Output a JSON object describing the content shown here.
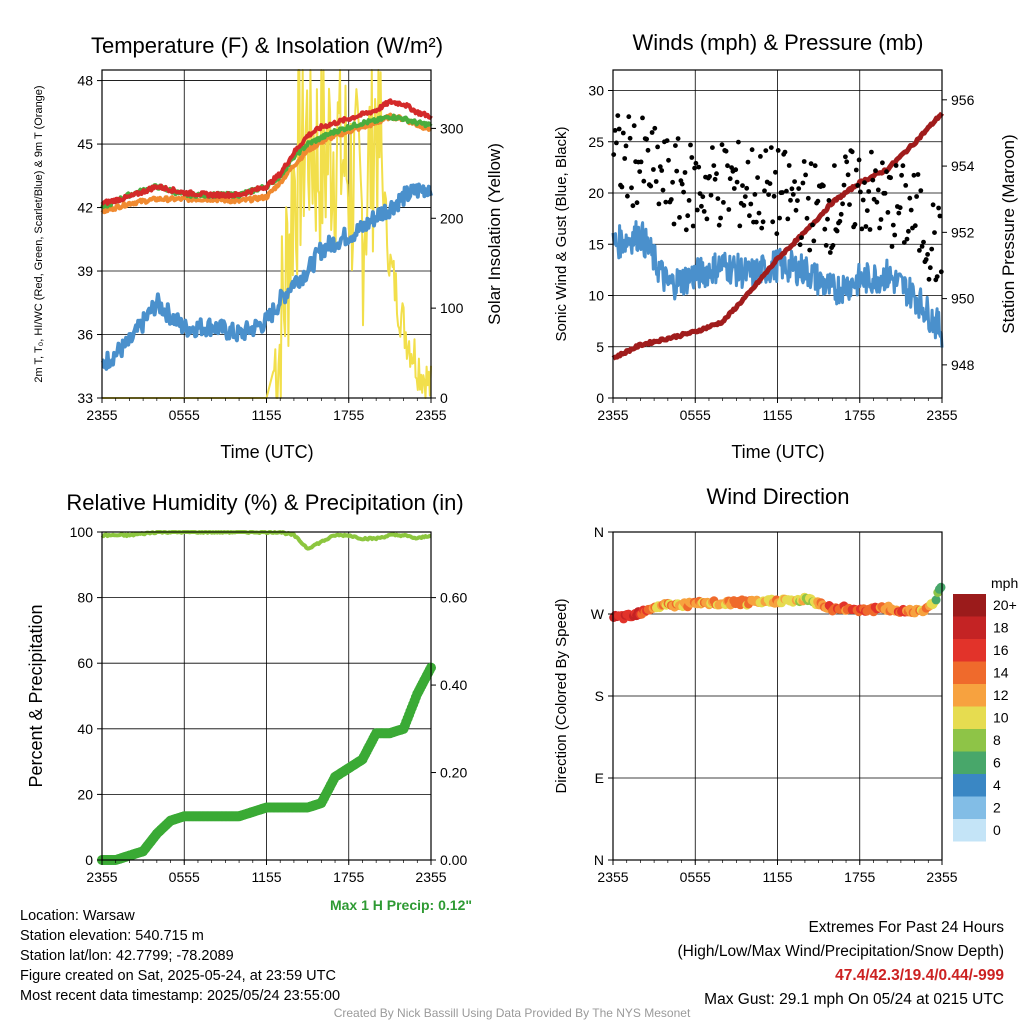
{
  "colors": {
    "red": "#d42a2a",
    "green": "#4aad3d",
    "orange": "#f08a30",
    "blue": "#4a90cc",
    "yellow": "#f2df4b",
    "maroon": "#a01c1c",
    "rh": "#8cc63f",
    "precip": "#3aaa35",
    "dots": "#000000"
  },
  "x_ticks": [
    "2355",
    "0555",
    "1155",
    "1755",
    "2355"
  ],
  "panels": {
    "temp": {
      "title": "Temperature (F) & Insolation (W/m²)",
      "xlabel": "Time (UTC)",
      "ylabel_left": "2m T, T₀, HI/WC (Red, Green, Scarlet/Blue) & 9m T (Orange)",
      "ylabel_right": "Solar Insolation (Yellow)",
      "yticks_left": [
        "48",
        "45",
        "42",
        "39",
        "36",
        "33"
      ],
      "yticks_right": [
        "300",
        "200",
        "100",
        "0"
      ]
    },
    "wind": {
      "title": "Winds (mph) & Pressure (mb)",
      "xlabel": "Time (UTC)",
      "ylabel_left": "Sonic Wind & Gust (Blue, Black)",
      "ylabel_right": "Station Pressure (Maroon)",
      "yticks_left": [
        "30",
        "25",
        "20",
        "15",
        "10",
        "5",
        "0"
      ],
      "yticks_right": [
        "956",
        "954",
        "952",
        "950",
        "948"
      ]
    },
    "rh": {
      "title": "Relative Humidity (%) & Precipitation (in)",
      "ylabel_left": "Percent & Precipitation",
      "yticks_left": [
        "100",
        "80",
        "60",
        "40",
        "20",
        "0"
      ],
      "yticks_right": [
        "0.60",
        "0.40",
        "0.20",
        "0.00"
      ],
      "max_precip": "Max 1 H Precip: 0.12\""
    },
    "dir": {
      "title": "Wind Direction",
      "ylabel_left": "Direction (Colored By Speed)",
      "yticks_left": [
        "N",
        "W",
        "S",
        "E",
        "N"
      ],
      "legend_title": "mph",
      "legend_labels": [
        "20+",
        "18",
        "16",
        "14",
        "12",
        "10",
        "8",
        "6",
        "4",
        "2",
        "0"
      ],
      "legend_colors": [
        "#9b1b1b",
        "#c42324",
        "#e2332a",
        "#ef6a2c",
        "#f7a23f",
        "#e6dc50",
        "#8ec447",
        "#48a76a",
        "#3a87c4",
        "#82bde6",
        "#c4e4f7"
      ]
    }
  },
  "info": {
    "location": "Location: Warsaw",
    "elevation": "Station elevation: 540.715 m",
    "latlon": "Station lat/lon: 42.7799; -78.2089",
    "created": "Figure created on Sat, 2025-05-24, at 23:59 UTC",
    "recent": "Most recent data timestamp: 2025/05/24 23:55:00",
    "extremes_title": "Extremes For Past 24 Hours",
    "extremes_sub": "(High/Low/Max Wind/Precipitation/Snow Depth)",
    "extremes_values": "47.4/42.3/19.4/0.44/-999",
    "max_gust": "Max Gust: 29.1 mph On 05/24 at 0215 UTC",
    "credit": "Created By Nick Bassill Using Data Provided By The NYS Mesonet"
  },
  "chart_data": [
    {
      "type": "line",
      "title": "Temperature (F) & Insolation (W/m²)",
      "xlabel": "Time (UTC)",
      "ylabel": "2m T, T₀, HI/WC (Red, Green, Scarlet/Blue) & 9m T (Orange)",
      "y2label": "Solar Insolation (Yellow)",
      "x": [
        0,
        2,
        4,
        6,
        8,
        10,
        12,
        13,
        14,
        15,
        16,
        17,
        18,
        19,
        20,
        21,
        22,
        23,
        24
      ],
      "ylim": [
        33,
        48.5
      ],
      "y2lim": [
        0,
        365
      ],
      "series": [
        {
          "name": "Red",
          "axis": "left",
          "values": [
            42.2,
            42.5,
            43.0,
            42.7,
            42.6,
            42.6,
            43.0,
            43.6,
            44.6,
            45.4,
            45.8,
            46.0,
            46.2,
            46.4,
            46.6,
            47.0,
            46.9,
            46.5,
            46.3
          ]
        },
        {
          "name": "Green",
          "axis": "left",
          "values": [
            42.0,
            42.6,
            43.0,
            42.6,
            42.6,
            42.6,
            43.0,
            43.5,
            44.4,
            45.0,
            45.3,
            45.6,
            45.8,
            46.0,
            46.1,
            46.3,
            46.2,
            46.0,
            45.9
          ]
        },
        {
          "name": "Orange",
          "axis": "left",
          "values": [
            41.8,
            42.2,
            42.4,
            42.4,
            42.4,
            42.3,
            42.5,
            43.2,
            44.0,
            44.7,
            45.1,
            45.4,
            45.6,
            45.8,
            46.0,
            46.3,
            46.2,
            45.9,
            45.7
          ]
        },
        {
          "name": "Blue",
          "axis": "left",
          "values": [
            34.6,
            35.6,
            37.5,
            36.3,
            36.4,
            36.0,
            36.6,
            37.6,
            38.5,
            39.0,
            40.0,
            40.4,
            40.7,
            41.0,
            41.6,
            42.0,
            42.5,
            42.8,
            43.0
          ]
        },
        {
          "name": "Yellow",
          "axis": "right",
          "values": [
            0,
            0,
            0,
            0,
            0,
            0,
            0,
            60,
            240,
            300,
            260,
            290,
            250,
            200,
            320,
            150,
            80,
            40,
            10
          ]
        }
      ]
    },
    {
      "type": "line",
      "title": "Winds (mph) & Pressure (mb)",
      "xlabel": "Time (UTC)",
      "ylabel": "Sonic Wind & Gust (Blue, Black)",
      "y2label": "Station Pressure (Maroon)",
      "x": [
        0,
        2,
        4,
        6,
        8,
        10,
        12,
        14,
        16,
        18,
        20,
        22,
        24
      ],
      "ylim": [
        0,
        32
      ],
      "y2lim": [
        947,
        956.9
      ],
      "series": [
        {
          "name": "Blue",
          "axis": "left",
          "values": [
            15.0,
            16.0,
            11.0,
            12.0,
            13.0,
            12.0,
            13.0,
            12.5,
            10.5,
            11.5,
            12.0,
            10.0,
            6.5
          ]
        },
        {
          "name": "Black",
          "axis": "left",
          "values": [
            23.5,
            23.0,
            21.0,
            20.5,
            21.0,
            20.5,
            20.0,
            19.0,
            18.5,
            20.5,
            19.0,
            18.0,
            14.0
          ]
        },
        {
          "name": "Maroon",
          "axis": "right",
          "values": [
            948.2,
            948.6,
            948.8,
            949.0,
            949.3,
            950.2,
            951.2,
            952.0,
            952.9,
            953.5,
            953.9,
            954.7,
            955.6
          ]
        }
      ]
    },
    {
      "type": "line",
      "title": "Relative Humidity (%) & Precipitation (in)",
      "ylabel": "Percent & Precipitation",
      "x": [
        0,
        1,
        2,
        3,
        4,
        5,
        6,
        7,
        8,
        9,
        10,
        11,
        12,
        13,
        14,
        15,
        16,
        17,
        18,
        19,
        20,
        21,
        22,
        23,
        24
      ],
      "ylim": [
        0,
        100
      ],
      "y2lim": [
        0,
        0.75
      ],
      "series": [
        {
          "name": "RH",
          "axis": "left",
          "values": [
            99,
            99,
            99,
            99.5,
            100,
            100,
            100,
            100,
            100,
            100,
            100,
            100,
            100,
            100,
            99,
            95,
            97,
            99,
            99,
            98,
            98,
            99,
            99,
            98,
            99
          ]
        },
        {
          "name": "Precipitation",
          "axis": "right",
          "values": [
            0.0,
            0.0,
            0.01,
            0.02,
            0.06,
            0.09,
            0.1,
            0.1,
            0.1,
            0.1,
            0.1,
            0.11,
            0.12,
            0.12,
            0.12,
            0.12,
            0.13,
            0.19,
            0.21,
            0.23,
            0.29,
            0.29,
            0.3,
            0.38,
            0.44
          ]
        }
      ]
    },
    {
      "type": "scatter",
      "title": "Wind Direction",
      "ylabel": "Direction (Colored By Speed)",
      "x": [
        0,
        1,
        2,
        3,
        4,
        5,
        6,
        7,
        8,
        9,
        10,
        11,
        12,
        13,
        14,
        15,
        16,
        17,
        18,
        19,
        20,
        21,
        22,
        23,
        23.5,
        24
      ],
      "ylim": [
        0,
        360
      ],
      "yticks": [
        "N",
        "W",
        "S",
        "E",
        "N"
      ],
      "series": [
        {
          "name": "Direction",
          "values": [
            265,
            268,
            272,
            278,
            280,
            280,
            281,
            282,
            281,
            283,
            282,
            283,
            285,
            284,
            286,
            282,
            276,
            276,
            275,
            275,
            276,
            273,
            274,
            276,
            285,
            305
          ],
          "speed": [
            18,
            17,
            16,
            12,
            12,
            12,
            13,
            12,
            12,
            13,
            12,
            11,
            12,
            10,
            9,
            12,
            15,
            14,
            16,
            15,
            13,
            14,
            12,
            13,
            8,
            7
          ]
        }
      ]
    }
  ]
}
